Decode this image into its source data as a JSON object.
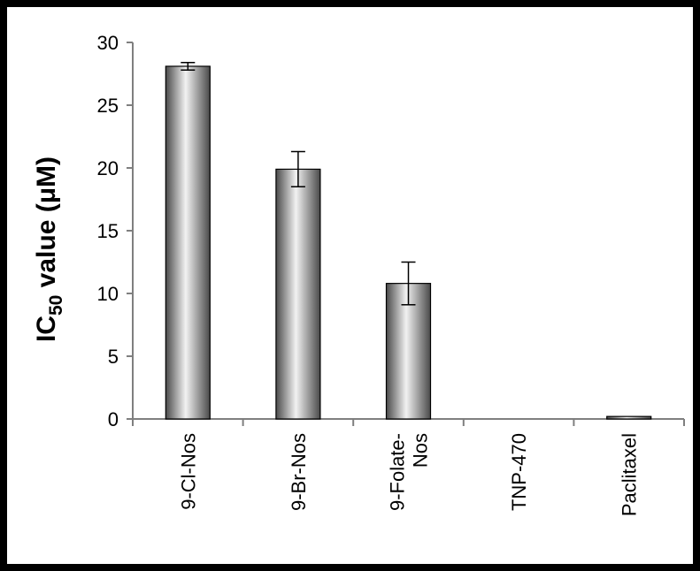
{
  "chart_data": {
    "type": "bar",
    "title": "",
    "xlabel": "",
    "ylabel": {
      "prefix": "IC",
      "subscript": "50",
      "suffix": " value (μM)"
    },
    "ylim": [
      0,
      30
    ],
    "yticks": [
      0,
      5,
      10,
      15,
      20,
      25,
      30
    ],
    "grid": false,
    "legend": "none",
    "categories": [
      [
        "9-Cl-Nos"
      ],
      [
        "9-Br-Nos"
      ],
      [
        "9-Folate-",
        "Nos"
      ],
      [
        "TNP-470"
      ],
      [
        "Paclitaxel"
      ]
    ],
    "values": [
      28.1,
      19.9,
      10.8,
      0,
      0.2
    ],
    "errors": [
      0.3,
      1.4,
      1.7,
      0,
      0
    ]
  },
  "colors": {
    "bar_dark": "#4a4a4a",
    "bar_light": "#f2f2f2",
    "axis": "#7f7f7f",
    "frame": "#000000"
  }
}
